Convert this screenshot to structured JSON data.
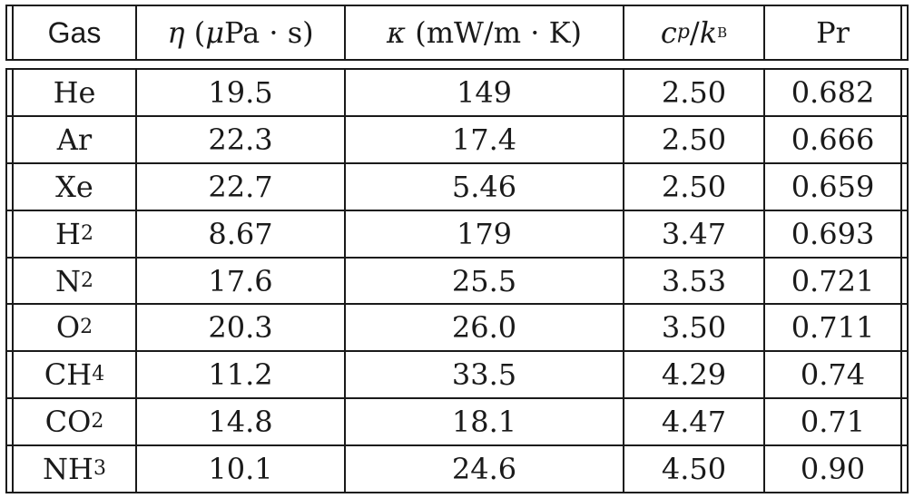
{
  "table": {
    "headers": {
      "gas": "Gas",
      "eta_symbol": "η",
      "eta_unit_pre": " (",
      "eta_mu": "μ",
      "eta_unit_post": "Pa · s)",
      "kappa_symbol": "κ",
      "kappa_unit": " (mW/m · K)",
      "cp_c": "c",
      "cp_p": "p",
      "cp_slash": "/",
      "cp_k": "k",
      "cp_B": "B",
      "pr": "Pr"
    },
    "rows": [
      {
        "gas": "He",
        "sub": "",
        "eta": "19.5",
        "kappa": "149",
        "cp": "2.50",
        "pr": "0.682"
      },
      {
        "gas": "Ar",
        "sub": "",
        "eta": "22.3",
        "kappa": "17.4",
        "cp": "2.50",
        "pr": "0.666"
      },
      {
        "gas": "Xe",
        "sub": "",
        "eta": "22.7",
        "kappa": "5.46",
        "cp": "2.50",
        "pr": "0.659"
      },
      {
        "gas": "H",
        "sub": "2",
        "eta": "8.67",
        "kappa": "179",
        "cp": "3.47",
        "pr": "0.693"
      },
      {
        "gas": "N",
        "sub": "2",
        "eta": "17.6",
        "kappa": "25.5",
        "cp": "3.53",
        "pr": "0.721"
      },
      {
        "gas": "O",
        "sub": "2",
        "eta": "20.3",
        "kappa": "26.0",
        "cp": "3.50",
        "pr": "0.711"
      },
      {
        "gas": "CH",
        "sub": "4",
        "eta": "11.2",
        "kappa": "33.5",
        "cp": "4.29",
        "pr": "0.74"
      },
      {
        "gas": "CO",
        "sub": "2",
        "eta": "14.8",
        "kappa": "18.1",
        "cp": "4.47",
        "pr": "0.71"
      },
      {
        "gas": "NH",
        "sub": "3",
        "eta": "10.1",
        "kappa": "24.6",
        "cp": "4.50",
        "pr": "0.90"
      }
    ]
  }
}
